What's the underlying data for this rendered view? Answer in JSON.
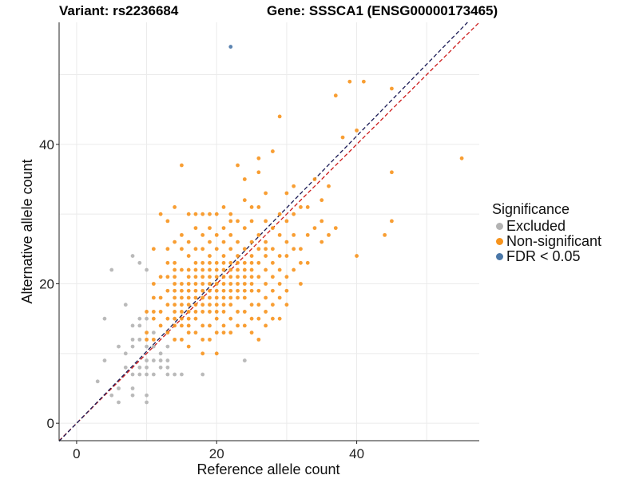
{
  "title_left": "Variant: rs2236684",
  "title_right": "Gene: SSSCA1 (ENSG00000173465)",
  "legend": {
    "title": "Significance",
    "items": [
      {
        "label": "Excluded",
        "color": "#b3b3b3"
      },
      {
        "label": "Non-significant",
        "color": "#f7941d"
      },
      {
        "label": "FDR < 0.05",
        "color": "#4a77a8"
      }
    ]
  },
  "chart_data": {
    "type": "scatter",
    "title": "",
    "xlabel": "Reference allele count",
    "ylabel": "Alternative allele count",
    "xlim": [
      -2.5,
      57.5
    ],
    "ylim": [
      -2.5,
      57.5
    ],
    "xticks": [
      0,
      20,
      40
    ],
    "yticks": [
      0,
      20,
      40
    ],
    "grid": true,
    "legend_position": "right",
    "reference_lines": [
      {
        "name": "y = x",
        "slope": 1,
        "intercept": 0,
        "color": "#cc1b1b",
        "style": "dashed"
      },
      {
        "name": "fitted",
        "slope": 1.03,
        "intercept": 0,
        "color": "#1b1b55",
        "style": "dashed"
      }
    ],
    "series": [
      {
        "name": "Excluded",
        "color": "#b3b3b3",
        "points": [
          [
            3,
            6
          ],
          [
            4,
            15
          ],
          [
            4,
            9
          ],
          [
            5,
            4
          ],
          [
            5,
            22
          ],
          [
            6,
            3
          ],
          [
            6,
            11
          ],
          [
            6,
            5
          ],
          [
            7,
            10
          ],
          [
            7,
            17
          ],
          [
            7,
            8
          ],
          [
            8,
            24
          ],
          [
            8,
            14
          ],
          [
            8,
            12
          ],
          [
            8,
            11
          ],
          [
            8,
            7
          ],
          [
            8,
            5
          ],
          [
            8,
            4
          ],
          [
            9,
            23
          ],
          [
            9,
            15
          ],
          [
            9,
            14
          ],
          [
            9,
            12
          ],
          [
            9,
            8
          ],
          [
            9,
            7
          ],
          [
            10,
            22
          ],
          [
            10,
            15
          ],
          [
            10,
            11
          ],
          [
            10,
            9
          ],
          [
            10,
            8
          ],
          [
            10,
            7
          ],
          [
            10,
            4
          ],
          [
            10,
            3
          ],
          [
            11,
            13
          ],
          [
            11,
            11
          ],
          [
            11,
            9
          ],
          [
            11,
            7
          ],
          [
            12,
            10
          ],
          [
            12,
            9
          ],
          [
            12,
            8
          ],
          [
            13,
            11
          ],
          [
            13,
            9
          ],
          [
            13,
            8
          ],
          [
            13,
            7
          ],
          [
            14,
            7
          ],
          [
            15,
            7
          ],
          [
            18,
            7
          ],
          [
            24,
            9
          ]
        ]
      },
      {
        "name": "Non-significant",
        "color": "#f7941d",
        "points": [
          [
            10,
            12
          ],
          [
            10,
            13
          ],
          [
            10,
            16
          ],
          [
            11,
            12
          ],
          [
            11,
            15
          ],
          [
            11,
            16
          ],
          [
            11,
            18
          ],
          [
            11,
            20
          ],
          [
            11,
            25
          ],
          [
            12,
            14
          ],
          [
            12,
            16
          ],
          [
            12,
            18
          ],
          [
            12,
            21
          ],
          [
            12,
            30
          ],
          [
            13,
            13
          ],
          [
            13,
            15
          ],
          [
            13,
            17
          ],
          [
            13,
            19
          ],
          [
            13,
            21
          ],
          [
            13,
            23
          ],
          [
            14,
            12
          ],
          [
            14,
            14
          ],
          [
            14,
            15
          ],
          [
            14,
            16
          ],
          [
            14,
            17
          ],
          [
            14,
            18
          ],
          [
            14,
            19
          ],
          [
            14,
            20
          ],
          [
            14,
            21
          ],
          [
            14,
            22
          ],
          [
            14,
            23
          ],
          [
            14,
            26
          ],
          [
            14,
            31
          ],
          [
            15,
            12
          ],
          [
            15,
            14
          ],
          [
            15,
            15
          ],
          [
            15,
            16
          ],
          [
            15,
            17
          ],
          [
            15,
            18
          ],
          [
            15,
            19
          ],
          [
            15,
            20
          ],
          [
            15,
            22
          ],
          [
            15,
            25
          ],
          [
            15,
            27
          ],
          [
            15,
            37
          ],
          [
            16,
            11
          ],
          [
            16,
            13
          ],
          [
            16,
            14
          ],
          [
            16,
            15
          ],
          [
            16,
            16
          ],
          [
            16,
            17
          ],
          [
            16,
            18
          ],
          [
            16,
            19
          ],
          [
            16,
            20
          ],
          [
            16,
            21
          ],
          [
            16,
            22
          ],
          [
            16,
            24
          ],
          [
            16,
            26
          ],
          [
            17,
            13
          ],
          [
            17,
            15
          ],
          [
            17,
            16
          ],
          [
            17,
            17
          ],
          [
            17,
            18
          ],
          [
            17,
            19
          ],
          [
            17,
            20
          ],
          [
            17,
            21
          ],
          [
            17,
            22
          ],
          [
            17,
            23
          ],
          [
            17,
            25
          ],
          [
            17,
            28
          ],
          [
            18,
            10
          ],
          [
            18,
            12
          ],
          [
            18,
            14
          ],
          [
            18,
            16
          ],
          [
            18,
            17
          ],
          [
            18,
            18
          ],
          [
            18,
            19
          ],
          [
            18,
            20
          ],
          [
            18,
            21
          ],
          [
            18,
            22
          ],
          [
            18,
            23
          ],
          [
            18,
            25
          ],
          [
            18,
            27
          ],
          [
            18,
            30
          ],
          [
            19,
            12
          ],
          [
            19,
            14
          ],
          [
            19,
            16
          ],
          [
            19,
            17
          ],
          [
            19,
            18
          ],
          [
            19,
            19
          ],
          [
            19,
            20
          ],
          [
            19,
            21
          ],
          [
            19,
            22
          ],
          [
            19,
            23
          ],
          [
            19,
            24
          ],
          [
            19,
            26
          ],
          [
            19,
            30
          ],
          [
            20,
            10
          ],
          [
            20,
            13
          ],
          [
            20,
            15
          ],
          [
            20,
            16
          ],
          [
            20,
            17
          ],
          [
            20,
            18
          ],
          [
            20,
            19
          ],
          [
            20,
            20
          ],
          [
            20,
            21
          ],
          [
            20,
            22
          ],
          [
            20,
            23
          ],
          [
            20,
            25
          ],
          [
            20,
            27
          ],
          [
            20,
            30
          ],
          [
            21,
            13
          ],
          [
            21,
            14
          ],
          [
            21,
            16
          ],
          [
            21,
            17
          ],
          [
            21,
            18
          ],
          [
            21,
            19
          ],
          [
            21,
            20
          ],
          [
            21,
            21
          ],
          [
            21,
            22
          ],
          [
            21,
            23
          ],
          [
            21,
            26
          ],
          [
            21,
            28
          ],
          [
            21,
            31
          ],
          [
            22,
            13
          ],
          [
            22,
            15
          ],
          [
            22,
            17
          ],
          [
            22,
            18
          ],
          [
            22,
            19
          ],
          [
            22,
            20
          ],
          [
            22,
            21
          ],
          [
            22,
            22
          ],
          [
            22,
            23
          ],
          [
            22,
            25
          ],
          [
            22,
            27
          ],
          [
            22,
            30
          ],
          [
            23,
            14
          ],
          [
            23,
            16
          ],
          [
            23,
            18
          ],
          [
            23,
            19
          ],
          [
            23,
            20
          ],
          [
            23,
            21
          ],
          [
            23,
            22
          ],
          [
            23,
            23
          ],
          [
            23,
            24
          ],
          [
            23,
            26
          ],
          [
            23,
            29
          ],
          [
            24,
            14
          ],
          [
            24,
            16
          ],
          [
            24,
            18
          ],
          [
            24,
            19
          ],
          [
            24,
            20
          ],
          [
            24,
            21
          ],
          [
            24,
            22
          ],
          [
            24,
            23
          ],
          [
            24,
            25
          ],
          [
            24,
            28
          ],
          [
            24,
            32
          ],
          [
            25,
            13
          ],
          [
            25,
            15
          ],
          [
            25,
            17
          ],
          [
            25,
            19
          ],
          [
            25,
            20
          ],
          [
            25,
            21
          ],
          [
            25,
            22
          ],
          [
            25,
            23
          ],
          [
            25,
            24
          ],
          [
            25,
            26
          ],
          [
            25,
            29
          ],
          [
            26,
            12
          ],
          [
            26,
            15
          ],
          [
            26,
            17
          ],
          [
            26,
            19
          ],
          [
            26,
            21
          ],
          [
            26,
            23
          ],
          [
            26,
            25
          ],
          [
            26,
            27
          ],
          [
            26,
            31
          ],
          [
            26,
            36
          ],
          [
            27,
            14
          ],
          [
            27,
            16
          ],
          [
            27,
            18
          ],
          [
            27,
            20
          ],
          [
            27,
            22
          ],
          [
            27,
            24
          ],
          [
            27,
            26
          ],
          [
            27,
            29
          ],
          [
            27,
            33
          ],
          [
            28,
            15
          ],
          [
            28,
            17
          ],
          [
            28,
            19
          ],
          [
            28,
            21
          ],
          [
            28,
            23
          ],
          [
            28,
            25
          ],
          [
            28,
            28
          ],
          [
            28,
            39
          ],
          [
            29,
            15
          ],
          [
            29,
            18
          ],
          [
            29,
            20
          ],
          [
            29,
            22
          ],
          [
            29,
            24
          ],
          [
            29,
            27
          ],
          [
            29,
            30
          ],
          [
            29,
            44
          ],
          [
            30,
            17
          ],
          [
            30,
            19
          ],
          [
            30,
            21
          ],
          [
            30,
            24
          ],
          [
            30,
            26
          ],
          [
            30,
            29
          ],
          [
            30,
            33
          ],
          [
            31,
            22
          ],
          [
            31,
            25
          ],
          [
            31,
            27
          ],
          [
            31,
            30
          ],
          [
            31,
            34
          ],
          [
            32,
            20
          ],
          [
            32,
            23
          ],
          [
            32,
            25
          ],
          [
            32,
            31
          ],
          [
            33,
            23
          ],
          [
            33,
            27
          ],
          [
            33,
            31
          ],
          [
            34,
            28
          ],
          [
            34,
            35
          ],
          [
            35,
            26
          ],
          [
            35,
            29
          ],
          [
            35,
            32
          ],
          [
            36,
            27
          ],
          [
            36,
            34
          ],
          [
            37,
            28
          ],
          [
            37,
            47
          ],
          [
            38,
            41
          ],
          [
            39,
            49
          ],
          [
            40,
            24
          ],
          [
            40,
            42
          ],
          [
            41,
            49
          ],
          [
            44,
            27
          ],
          [
            45,
            29
          ],
          [
            45,
            36
          ],
          [
            45,
            48
          ],
          [
            55,
            38
          ],
          [
            25,
            31
          ],
          [
            24,
            35
          ],
          [
            23,
            37
          ],
          [
            26,
            38
          ],
          [
            27,
            25
          ],
          [
            13,
            25
          ],
          [
            13,
            29
          ],
          [
            17,
            30
          ],
          [
            19,
            28
          ],
          [
            21,
            24
          ],
          [
            22,
            29
          ],
          [
            16,
            30
          ]
        ]
      },
      {
        "name": "FDR < 0.05",
        "color": "#4a77a8",
        "points": [
          [
            22,
            54
          ]
        ]
      }
    ]
  }
}
